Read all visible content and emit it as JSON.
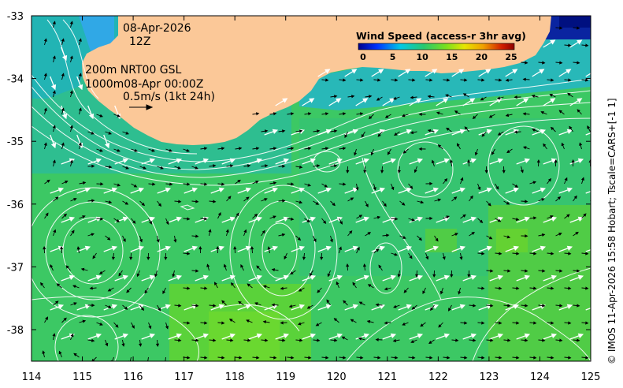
{
  "map": {
    "date": "08-Apr-2026",
    "time": "12Z",
    "contours_line1": "200m  NRT00 GSL",
    "contours_line2": "1000m08-Apr 00:00Z",
    "scale_text": "0.5m/s (1kt 24h)",
    "credit": "© IMOS 11-Apr-2026 15:58 Hobart; Tscale=CARS+[-1 1]",
    "legend": {
      "title": "Wind Speed (access-r 3hr avg)",
      "ticks": [
        "0",
        "5",
        "10",
        "15",
        "20",
        "25"
      ],
      "colors": [
        "#00008c",
        "#0033ff",
        "#00c8e6",
        "#28c86e",
        "#78e01e",
        "#e6e600",
        "#f0a000",
        "#d21e00",
        "#8c0000"
      ]
    },
    "longitudes": [
      "114",
      "115",
      "116",
      "117",
      "118",
      "119",
      "120",
      "121",
      "122",
      "123",
      "124",
      "125"
    ],
    "latitudes": [
      "-33",
      "-34",
      "-35",
      "-36",
      "-37",
      "-38"
    ],
    "colors": {
      "land": "#fbc898",
      "sea_green": "#3cc864",
      "sea_teal": "#2ebe90",
      "sea_lightgreen": "#64d232",
      "cyan": "#30b4e6",
      "blue": "#002ab4",
      "contour": "#ffffff"
    }
  }
}
